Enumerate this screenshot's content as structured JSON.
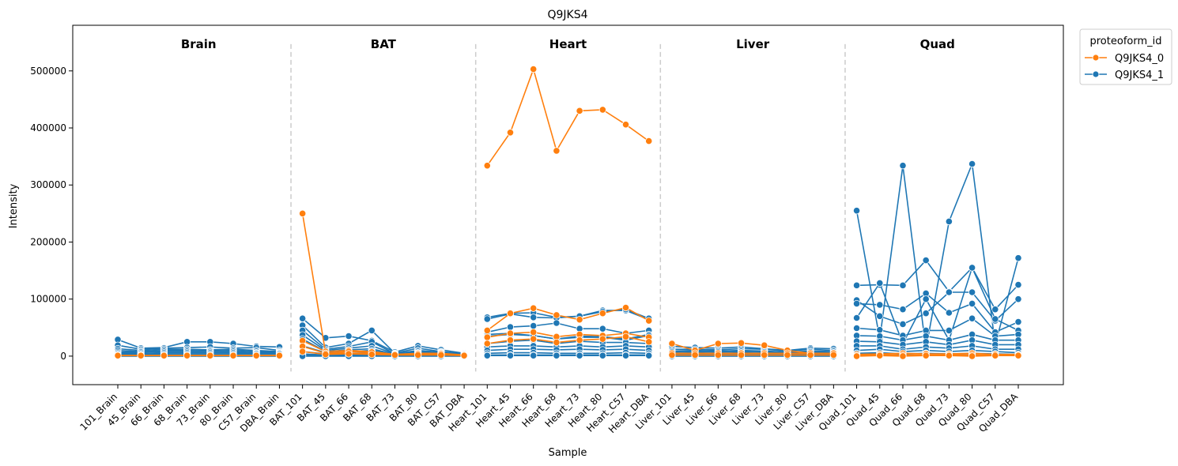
{
  "chart_data": {
    "type": "line",
    "title": "Q9JKS4",
    "xlabel": "Sample",
    "ylabel": "Intensity",
    "ylim": [
      -50000,
      580000
    ],
    "yticks": [
      0,
      100000,
      200000,
      300000,
      400000,
      500000
    ],
    "grid": false,
    "legend": {
      "title": "proteoform_id",
      "placement": "outside-top-right",
      "entries": [
        {
          "name": "Q9JKS4_0",
          "color": "#ff7f0e"
        },
        {
          "name": "Q9JKS4_1",
          "color": "#1f77b4"
        }
      ]
    },
    "groups": [
      "Brain",
      "BAT",
      "Heart",
      "Liver",
      "Quad"
    ],
    "categories": [
      "101_Brain",
      "45_Brain",
      "66_Brain",
      "68_Brain",
      "73_Brain",
      "80_Brain",
      "C57_Brain",
      "DBA_Brain",
      "BAT_101",
      "BAT_45",
      "BAT_66",
      "BAT_68",
      "BAT_73",
      "BAT_80",
      "BAT_C57",
      "BAT_DBA",
      "Heart_101",
      "Heart_45",
      "Heart_66",
      "Heart_68",
      "Heart_73",
      "Heart_80",
      "Heart_C57",
      "Heart_DBA",
      "Liver_101",
      "Liver_45",
      "Liver_66",
      "Liver_68",
      "Liver_73",
      "Liver_80",
      "Liver_C57",
      "Liver_DBA",
      "Quad_101",
      "Quad_45",
      "Quad_66",
      "Quad_68",
      "Quad_73",
      "Quad_80",
      "Quad_C57",
      "Quad_DBA"
    ],
    "series": [
      {
        "name": "Q9JKS4_0",
        "color": "#ff7f0e",
        "segments": [
          [
            1000,
            1000,
            1000,
            1000,
            1000,
            1000,
            1000,
            1000
          ],
          [
            250000,
            5000,
            5000,
            5000,
            3000,
            3000,
            3000,
            2000
          ],
          [
            334000,
            392000,
            503000,
            360000,
            430000,
            432000,
            406000,
            377000
          ],
          [
            22000,
            10000,
            22000,
            23000,
            19000,
            10000,
            5000,
            5000
          ],
          [
            2000,
            2000,
            2000,
            2000,
            2000,
            2000,
            2000,
            2000
          ]
        ]
      },
      {
        "name": "Q9JKS4_0",
        "color": "#ff7f0e",
        "segments": [
          [
            1000,
            1000,
            1000,
            1000,
            1000,
            1000,
            1000,
            1000
          ],
          [
            27000,
            8000,
            10000,
            8000,
            3000,
            5000,
            5000,
            2000
          ],
          [
            45000,
            75000,
            84000,
            72000,
            64000,
            75000,
            85000,
            62000
          ],
          [
            5000,
            5000,
            5000,
            5000,
            5000,
            5000,
            5000,
            5000
          ],
          [
            3000,
            4000,
            5000,
            4000,
            4000,
            5000,
            3000,
            3000
          ]
        ]
      },
      {
        "name": "Q9JKS4_0",
        "color": "#ff7f0e",
        "segments": [
          [
            1000,
            1000,
            1000,
            1000,
            1000,
            1000,
            1000,
            1000
          ],
          [
            17000,
            5000,
            8000,
            7000,
            3000,
            4000,
            4000,
            2000
          ],
          [
            33000,
            40000,
            42000,
            34000,
            38000,
            36000,
            40000,
            33000
          ],
          [
            2000,
            2000,
            2000,
            2000,
            2000,
            2000,
            2000,
            2000
          ],
          [
            1000,
            2000,
            2000,
            1000,
            2000,
            2000,
            1000,
            2000
          ]
        ]
      },
      {
        "name": "Q9JKS4_0",
        "color": "#ff7f0e",
        "segments": [
          [
            1000,
            1000,
            1000,
            1000,
            1000,
            1000,
            1000,
            1000
          ],
          [
            8000,
            3000,
            4000,
            3000,
            2000,
            2000,
            2000,
            1000
          ],
          [
            22000,
            28000,
            30000,
            24000,
            28000,
            30000,
            34000,
            25000
          ],
          [
            2000,
            2000,
            2000,
            2000,
            2000,
            2000,
            2000,
            2000
          ],
          [
            0,
            1000,
            0,
            1000,
            1000,
            0,
            1000,
            1000
          ]
        ]
      },
      {
        "name": "Q9JKS4_1",
        "color": "#1f77b4",
        "segments": [
          [
            29000,
            14000,
            15000,
            25000,
            25000,
            22000,
            17000,
            16000
          ],
          [
            66000,
            32000,
            35000,
            27000,
            7000,
            18000,
            11000,
            5000
          ],
          [
            68000,
            75000,
            76000,
            68000,
            70000,
            80000,
            80000,
            64000
          ],
          [
            17000,
            15000,
            14000,
            16000,
            13000,
            10000,
            14000,
            13000
          ],
          [
            255000,
            30000,
            334000,
            12000,
            236000,
            337000,
            20000,
            172000
          ]
        ]
      },
      {
        "name": "Q9JKS4_1",
        "color": "#1f77b4",
        "segments": [
          [
            19000,
            12000,
            14000,
            15000,
            16000,
            14000,
            15000,
            10000
          ],
          [
            54000,
            15000,
            22000,
            45000,
            5000,
            14000,
            8000,
            4000
          ],
          [
            65000,
            74000,
            68000,
            67000,
            70000,
            78000,
            82000,
            66000
          ],
          [
            12000,
            12000,
            11000,
            13000,
            12000,
            9000,
            12000,
            10000
          ],
          [
            124000,
            125000,
            124000,
            168000,
            113000,
            155000,
            82000,
            125000
          ]
        ]
      },
      {
        "name": "Q9JKS4_1",
        "color": "#1f77b4",
        "segments": [
          [
            13000,
            10000,
            12000,
            12000,
            11000,
            12000,
            10000,
            8000
          ],
          [
            45000,
            12000,
            17000,
            25000,
            4000,
            10000,
            7000,
            3000
          ],
          [
            42000,
            51000,
            53000,
            58000,
            48000,
            48000,
            40000,
            45000
          ],
          [
            9000,
            10000,
            9000,
            10000,
            9000,
            7000,
            9000,
            8000
          ],
          [
            98000,
            70000,
            56000,
            75000,
            112000,
            112000,
            62000,
            100000
          ]
        ]
      },
      {
        "name": "Q9JKS4_1",
        "color": "#1f77b4",
        "segments": [
          [
            10000,
            8000,
            10000,
            10000,
            9000,
            10000,
            8000,
            7000
          ],
          [
            37000,
            10000,
            14000,
            18000,
            4000,
            8000,
            6000,
            3000
          ],
          [
            38000,
            40000,
            36000,
            30000,
            35000,
            34000,
            30000,
            38000
          ],
          [
            7000,
            8000,
            7000,
            8000,
            7000,
            6000,
            7000,
            6000
          ],
          [
            92000,
            90000,
            82000,
            110000,
            76000,
            92000,
            42000,
            60000
          ]
        ]
      },
      {
        "name": "Q9JKS4_1",
        "color": "#1f77b4",
        "segments": [
          [
            7000,
            7000,
            8000,
            8000,
            8000,
            8000,
            6000,
            6000
          ],
          [
            30000,
            8000,
            11000,
            13000,
            3000,
            6000,
            5000,
            2000
          ],
          [
            35000,
            38000,
            36000,
            30000,
            33000,
            33000,
            28000,
            36000
          ],
          [
            5000,
            6000,
            5000,
            6000,
            5000,
            5000,
            5000,
            5000
          ],
          [
            67000,
            128000,
            22000,
            100000,
            28000,
            155000,
            65000,
            45000
          ]
        ]
      },
      {
        "name": "Q9JKS4_1",
        "color": "#1f77b4",
        "segments": [
          [
            5000,
            5000,
            6000,
            6000,
            6000,
            6000,
            5000,
            5000
          ],
          [
            18000,
            6000,
            8000,
            10000,
            3000,
            5000,
            4000,
            2000
          ],
          [
            22000,
            26000,
            28000,
            22000,
            26000,
            24000,
            24000,
            22000
          ],
          [
            4000,
            4000,
            4000,
            4000,
            4000,
            4000,
            4000,
            4000
          ],
          [
            49000,
            46000,
            36000,
            45000,
            45000,
            66000,
            35000,
            38000
          ]
        ]
      },
      {
        "name": "Q9JKS4_1",
        "color": "#1f77b4",
        "segments": [
          [
            3000,
            3000,
            4000,
            4000,
            4000,
            4000,
            4000,
            4000
          ],
          [
            8000,
            4000,
            5000,
            6000,
            2000,
            3000,
            3000,
            1000
          ],
          [
            16000,
            18000,
            18000,
            16000,
            18000,
            16000,
            18000,
            16000
          ],
          [
            3000,
            3000,
            3000,
            3000,
            3000,
            3000,
            3000,
            3000
          ],
          [
            36000,
            35000,
            28000,
            35000,
            28000,
            38000,
            28000,
            28000
          ]
        ]
      },
      {
        "name": "Q9JKS4_1",
        "color": "#1f77b4",
        "segments": [
          [
            2000,
            2000,
            2000,
            2000,
            2000,
            2000,
            2000,
            2000
          ],
          [
            4000,
            2000,
            3000,
            3000,
            1000,
            2000,
            2000,
            1000
          ],
          [
            10000,
            12000,
            12000,
            11000,
            12000,
            11000,
            12000,
            10000
          ],
          [
            2000,
            2000,
            2000,
            2000,
            2000,
            2000,
            2000,
            2000
          ],
          [
            26000,
            25000,
            20000,
            25000,
            20000,
            28000,
            20000,
            20000
          ]
        ]
      },
      {
        "name": "Q9JKS4_1",
        "color": "#1f77b4",
        "segments": [
          [
            1000,
            1000,
            1000,
            1000,
            1000,
            1000,
            1000,
            1000
          ],
          [
            2000,
            1000,
            2000,
            2000,
            1000,
            1000,
            1000,
            1000
          ],
          [
            5000,
            6000,
            6000,
            5000,
            5000,
            5000,
            6000,
            5000
          ],
          [
            1000,
            1000,
            1000,
            1000,
            1000,
            1000,
            1000,
            1000
          ],
          [
            18000,
            18000,
            12000,
            16000,
            14000,
            18000,
            12000,
            12000
          ]
        ]
      },
      {
        "name": "Q9JKS4_1",
        "color": "#1f77b4",
        "segments": [
          [
            1000,
            1000,
            1000,
            1000,
            1000,
            1000,
            1000,
            1000
          ],
          [
            1000,
            1000,
            1000,
            1000,
            1000,
            1000,
            1000,
            1000
          ],
          [
            2000,
            2000,
            2000,
            2000,
            2000,
            2000,
            2000,
            2000
          ],
          [
            1000,
            1000,
            1000,
            1000,
            1000,
            1000,
            1000,
            1000
          ],
          [
            10000,
            12000,
            8000,
            10000,
            8000,
            10000,
            8000,
            6000
          ]
        ]
      },
      {
        "name": "Q9JKS4_1",
        "color": "#1f77b4",
        "segments": [
          [
            0,
            0,
            0,
            0,
            0,
            0,
            0,
            0
          ],
          [
            0,
            0,
            0,
            0,
            0,
            0,
            0,
            0
          ],
          [
            1000,
            1000,
            1000,
            1000,
            1000,
            1000,
            1000,
            1000
          ],
          [
            0,
            0,
            0,
            0,
            0,
            0,
            0,
            0
          ],
          [
            5000,
            6000,
            4000,
            5000,
            4000,
            5000,
            4000,
            3000
          ]
        ]
      }
    ]
  }
}
